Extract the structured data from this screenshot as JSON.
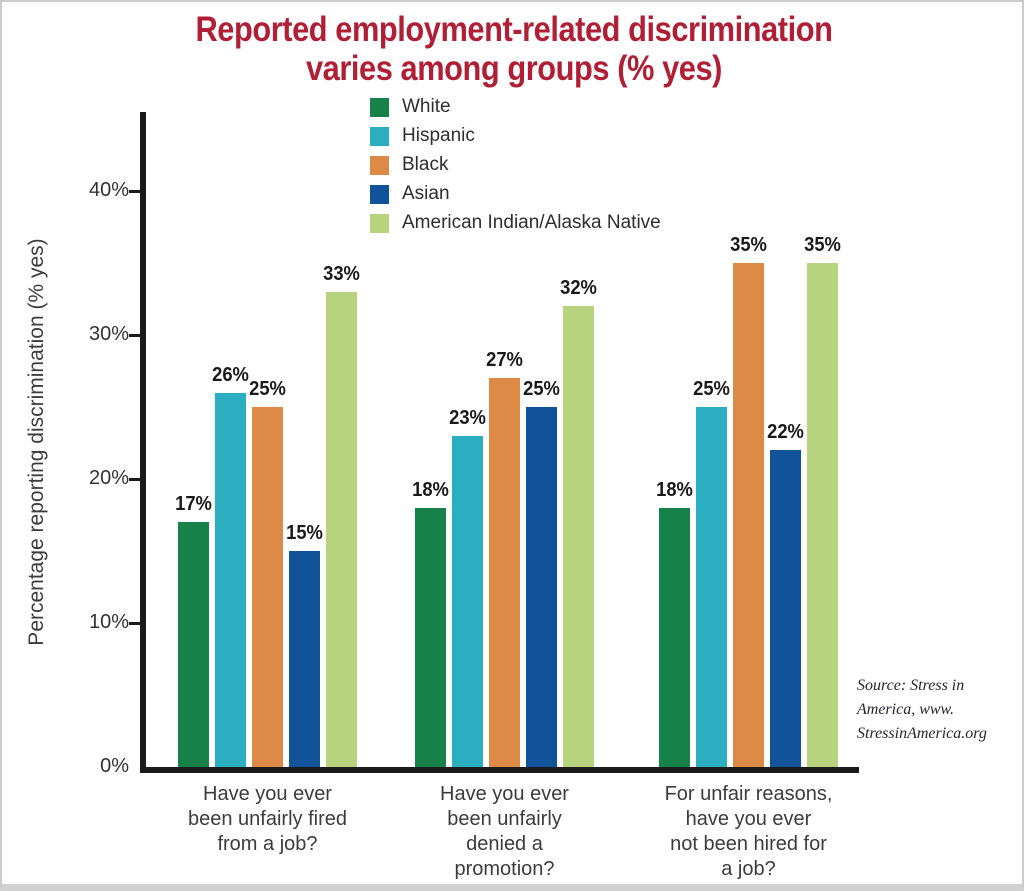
{
  "header": {
    "lines": [
      "Reported employment-related discrimination",
      "varies among groups (% yes)"
    ],
    "color": "#B01F36"
  },
  "chart_data": {
    "type": "bar",
    "title": "Reported employment-related discrimination varies among groups (% yes)",
    "xlabel": "",
    "ylabel": "Percentage reporting discrimination (% yes)",
    "ylim": [
      0,
      45
    ],
    "grid": false,
    "legend_position": "top-center",
    "value_label_suffix": "%",
    "yticks": [
      {
        "label": "0%",
        "value": 0
      },
      {
        "label": "10%",
        "value": 10
      },
      {
        "label": "20%",
        "value": 20
      },
      {
        "label": "30%",
        "value": 30
      },
      {
        "label": "40%",
        "value": 40
      }
    ],
    "categories": [
      "Have you ever been unfairly fired from a job?",
      "Have you ever been unfairly denied a promotion?",
      "For unfair reasons, have you ever not been hired for a job?"
    ],
    "category_lines": [
      [
        "Have you ever",
        "been unfairly fired",
        "from a job?"
      ],
      [
        "Have you ever",
        "been unfairly",
        "denied a",
        "promotion?"
      ],
      [
        "For unfair reasons,",
        "have you ever",
        "not been hired for",
        "a job?"
      ]
    ],
    "series": [
      {
        "name": "White",
        "color": "#168249",
        "values": [
          17,
          18,
          18
        ]
      },
      {
        "name": "Hispanic",
        "color": "#2BAEC0",
        "values": [
          26,
          23,
          25
        ]
      },
      {
        "name": "Black",
        "color": "#DD8A46",
        "values": [
          25,
          27,
          35
        ]
      },
      {
        "name": "Asian",
        "color": "#11539B",
        "values": [
          15,
          25,
          22
        ]
      },
      {
        "name": "American Indian/Alaska Native",
        "color": "#B7D37E",
        "values": [
          33,
          32,
          35
        ]
      }
    ]
  },
  "source": {
    "lines": [
      "Source: Stress in",
      "America, www.",
      "StressinAmerica.org"
    ]
  }
}
